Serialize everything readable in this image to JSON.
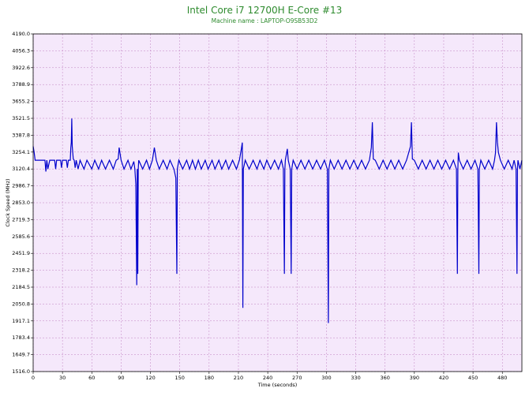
{
  "chart_data": {
    "type": "line",
    "title": "Intel Core i7 12700H E-Core #13",
    "subtitle": "Machine name : LAPTOP-O9SB53D2",
    "xlabel": "Time (seconds)",
    "ylabel": "Clock Speed (MHz)",
    "xlim": [
      0,
      500
    ],
    "ylim": [
      1516.0,
      4190.0
    ],
    "x_ticks": [
      0,
      30,
      60,
      90,
      120,
      150,
      180,
      210,
      240,
      270,
      300,
      330,
      360,
      390,
      420,
      450,
      480
    ],
    "y_ticks": [
      1516.0,
      1649.7,
      1783.4,
      1917.1,
      2050.8,
      2184.5,
      2318.2,
      2451.9,
      2585.6,
      2719.3,
      2853.0,
      2986.7,
      3120.4,
      3254.1,
      3387.8,
      3521.5,
      3655.2,
      3788.9,
      3922.6,
      4056.3,
      4190.0
    ],
    "grid": true,
    "background": "#f5e8fb",
    "grid_color": "#c080c0",
    "line_color": "#0000cc",
    "series": [
      {
        "values": [
          [
            0,
            3300
          ],
          [
            1,
            3254
          ],
          [
            2,
            3190
          ],
          [
            12,
            3190
          ],
          [
            13,
            3100
          ],
          [
            14,
            3190
          ],
          [
            15,
            3120
          ],
          [
            17,
            3190
          ],
          [
            22,
            3190
          ],
          [
            23,
            3120
          ],
          [
            24,
            3190
          ],
          [
            28,
            3190
          ],
          [
            29,
            3130
          ],
          [
            30,
            3190
          ],
          [
            34,
            3190
          ],
          [
            35,
            3130
          ],
          [
            36,
            3190
          ],
          [
            38,
            3190
          ],
          [
            38.5,
            3290
          ],
          [
            39,
            3330
          ],
          [
            39.5,
            3520
          ],
          [
            40,
            3300
          ],
          [
            41,
            3200
          ],
          [
            42,
            3190
          ],
          [
            43,
            3130
          ],
          [
            44,
            3190
          ],
          [
            46,
            3120
          ],
          [
            48,
            3190
          ],
          [
            52,
            3120
          ],
          [
            55,
            3190
          ],
          [
            60,
            3120
          ],
          [
            63,
            3190
          ],
          [
            67,
            3120
          ],
          [
            70,
            3190
          ],
          [
            74,
            3120
          ],
          [
            78,
            3190
          ],
          [
            82,
            3120
          ],
          [
            85,
            3190
          ],
          [
            87,
            3200
          ],
          [
            88,
            3290
          ],
          [
            90,
            3190
          ],
          [
            93,
            3120
          ],
          [
            97,
            3190
          ],
          [
            100,
            3120
          ],
          [
            103,
            3180
          ],
          [
            104,
            3120
          ],
          [
            105,
            3000
          ],
          [
            106,
            2200
          ],
          [
            106.5,
            3120
          ],
          [
            107,
            2290
          ],
          [
            107.5,
            3120
          ],
          [
            108,
            3190
          ],
          [
            112,
            3120
          ],
          [
            116,
            3190
          ],
          [
            119,
            3120
          ],
          [
            122,
            3190
          ],
          [
            124,
            3290
          ],
          [
            126,
            3190
          ],
          [
            129,
            3120
          ],
          [
            133,
            3190
          ],
          [
            137,
            3120
          ],
          [
            140,
            3190
          ],
          [
            144,
            3120
          ],
          [
            146,
            3050
          ],
          [
            147,
            2290
          ],
          [
            147.5,
            3120
          ],
          [
            149,
            3190
          ],
          [
            153,
            3120
          ],
          [
            157,
            3190
          ],
          [
            160,
            3120
          ],
          [
            163,
            3190
          ],
          [
            166,
            3120
          ],
          [
            169,
            3190
          ],
          [
            172,
            3120
          ],
          [
            176,
            3190
          ],
          [
            179,
            3120
          ],
          [
            183,
            3190
          ],
          [
            186,
            3120
          ],
          [
            190,
            3190
          ],
          [
            193,
            3120
          ],
          [
            197,
            3190
          ],
          [
            200,
            3120
          ],
          [
            204,
            3190
          ],
          [
            208,
            3120
          ],
          [
            211,
            3190
          ],
          [
            213,
            3280
          ],
          [
            214,
            3330
          ],
          [
            214.5,
            2020
          ],
          [
            215,
            3120
          ],
          [
            217,
            3190
          ],
          [
            221,
            3120
          ],
          [
            225,
            3190
          ],
          [
            229,
            3120
          ],
          [
            232,
            3190
          ],
          [
            236,
            3120
          ],
          [
            239,
            3190
          ],
          [
            243,
            3120
          ],
          [
            247,
            3190
          ],
          [
            251,
            3120
          ],
          [
            254,
            3190
          ],
          [
            256,
            3120
          ],
          [
            257,
            2290
          ],
          [
            257.5,
            3120
          ],
          [
            258,
            3190
          ],
          [
            260,
            3280
          ],
          [
            261,
            3190
          ],
          [
            263,
            3120
          ],
          [
            264,
            2290
          ],
          [
            264.5,
            3120
          ],
          [
            266,
            3190
          ],
          [
            270,
            3120
          ],
          [
            274,
            3190
          ],
          [
            278,
            3120
          ],
          [
            282,
            3190
          ],
          [
            286,
            3120
          ],
          [
            290,
            3190
          ],
          [
            294,
            3120
          ],
          [
            298,
            3190
          ],
          [
            301,
            3120
          ],
          [
            302,
            1900
          ],
          [
            302.5,
            3120
          ],
          [
            304,
            3190
          ],
          [
            308,
            3120
          ],
          [
            312,
            3190
          ],
          [
            316,
            3120
          ],
          [
            320,
            3190
          ],
          [
            324,
            3120
          ],
          [
            328,
            3190
          ],
          [
            332,
            3120
          ],
          [
            336,
            3190
          ],
          [
            340,
            3120
          ],
          [
            344,
            3190
          ],
          [
            346,
            3290
          ],
          [
            347,
            3490
          ],
          [
            348,
            3200
          ],
          [
            350,
            3190
          ],
          [
            354,
            3120
          ],
          [
            358,
            3190
          ],
          [
            362,
            3120
          ],
          [
            366,
            3190
          ],
          [
            370,
            3120
          ],
          [
            374,
            3190
          ],
          [
            378,
            3120
          ],
          [
            382,
            3190
          ],
          [
            386,
            3300
          ],
          [
            387,
            3490
          ],
          [
            388,
            3200
          ],
          [
            390,
            3190
          ],
          [
            394,
            3120
          ],
          [
            398,
            3190
          ],
          [
            402,
            3120
          ],
          [
            406,
            3190
          ],
          [
            410,
            3120
          ],
          [
            414,
            3190
          ],
          [
            418,
            3120
          ],
          [
            422,
            3190
          ],
          [
            426,
            3120
          ],
          [
            430,
            3190
          ],
          [
            433,
            3120
          ],
          [
            434,
            2290
          ],
          [
            434.5,
            3120
          ],
          [
            435,
            3250
          ],
          [
            436,
            3190
          ],
          [
            440,
            3120
          ],
          [
            444,
            3190
          ],
          [
            448,
            3120
          ],
          [
            452,
            3190
          ],
          [
            455,
            3120
          ],
          [
            456,
            2290
          ],
          [
            456.5,
            3120
          ],
          [
            458,
            3190
          ],
          [
            462,
            3120
          ],
          [
            466,
            3190
          ],
          [
            470,
            3120
          ],
          [
            472,
            3190
          ],
          [
            473,
            3250
          ],
          [
            474,
            3490
          ],
          [
            475,
            3330
          ],
          [
            476,
            3250
          ],
          [
            478,
            3190
          ],
          [
            482,
            3120
          ],
          [
            486,
            3190
          ],
          [
            490,
            3120
          ],
          [
            492,
            3190
          ],
          [
            494,
            3120
          ],
          [
            495,
            2290
          ],
          [
            495.5,
            3120
          ],
          [
            496,
            3190
          ],
          [
            498,
            3120
          ],
          [
            500,
            3190
          ]
        ]
      }
    ]
  }
}
